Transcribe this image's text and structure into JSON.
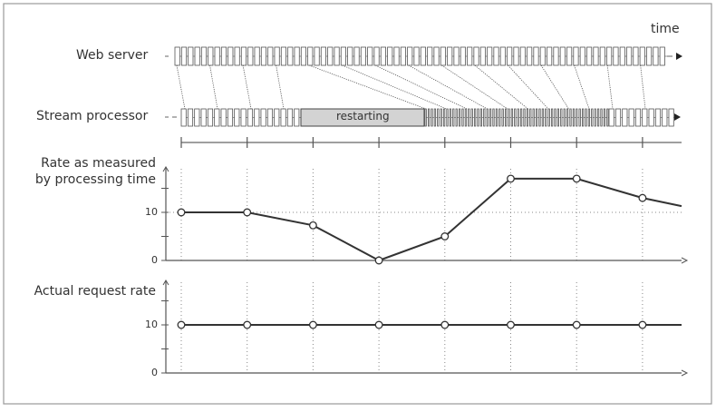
{
  "labels": {
    "time": "time",
    "web_server": "Web server",
    "stream_processor": "Stream processor",
    "restarting": "restarting",
    "chart1_title_line1": "Rate as measured",
    "chart1_title_line2": "by processing time",
    "chart2_title": "Actual request rate"
  },
  "chart_data": [
    {
      "type": "line",
      "title": "Rate as measured by processing time",
      "yticks": [
        "0",
        "10"
      ],
      "ylim": [
        0,
        18
      ],
      "grid": "dotted vertical at each time tick, dotted horizontal at 10",
      "values": [
        10,
        10,
        7.3,
        0,
        5,
        17,
        17,
        13,
        11.3
      ]
    },
    {
      "type": "line",
      "title": "Actual request rate",
      "yticks": [
        "0",
        "10"
      ],
      "ylim": [
        0,
        18
      ],
      "grid": "dotted vertical at each time tick",
      "values": [
        10,
        10,
        10,
        10,
        10,
        10,
        10,
        10,
        10
      ]
    }
  ],
  "colors": {
    "line": "#333333",
    "restart_fill": "#d3d3d3",
    "frame": "#999999"
  }
}
